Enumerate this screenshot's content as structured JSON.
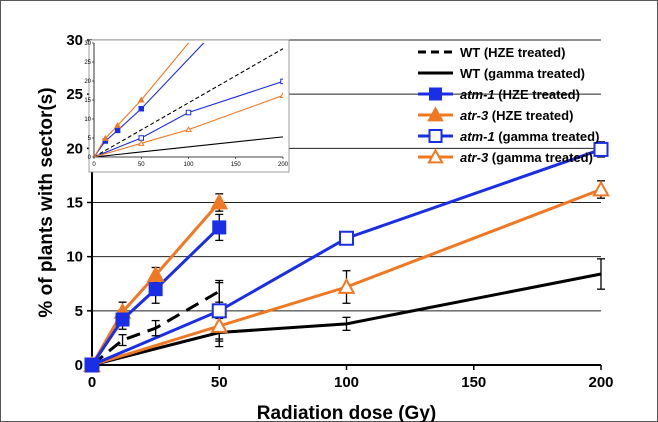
{
  "chart_data": {
    "type": "line",
    "xlabel": "Radiation dose (Gy)",
    "ylabel": "% of plants with sector(s)",
    "xlim": [
      0,
      200
    ],
    "ylim": [
      0,
      30
    ],
    "x_ticks": [
      "0",
      "50",
      "100",
      "150",
      "200"
    ],
    "y_ticks": [
      "0",
      "5",
      "10",
      "15",
      "20",
      "25",
      "30"
    ],
    "grid": "horizontal",
    "legend_position": "top-right",
    "series": [
      {
        "name": "WT (HZE treated)",
        "name_italic": "",
        "name_rest": "WT (HZE treated)",
        "color": "#000000",
        "dash": "dashed",
        "marker": "none",
        "x": [
          0,
          12,
          25,
          50
        ],
        "y": [
          0,
          2.3,
          3.4,
          6.8
        ],
        "err": [
          0,
          0.5,
          0.7,
          1.0
        ]
      },
      {
        "name": "WT (gamma treated)",
        "name_italic": "",
        "name_rest": "WT (gamma treated)",
        "color": "#000000",
        "dash": "solid",
        "marker": "none",
        "x": [
          0,
          50,
          100,
          200
        ],
        "y": [
          0,
          3.0,
          3.8,
          8.4
        ],
        "err": [
          0,
          1.3,
          0.6,
          1.4
        ]
      },
      {
        "name": "atm-1 (HZE treated)",
        "name_italic": "atm-1",
        "name_rest": " (HZE treated)",
        "color": "#1a2ee6",
        "dash": "solid",
        "marker": "filled-square",
        "x": [
          0,
          12,
          25,
          50
        ],
        "y": [
          0,
          4.2,
          7.0,
          12.7
        ],
        "err": [
          0,
          0.9,
          1.3,
          1.2
        ]
      },
      {
        "name": "atr-3 (HZE treated)",
        "name_italic": "atr-3",
        "name_rest": " (HZE treated)",
        "color": "#f07822",
        "dash": "solid",
        "marker": "filled-triangle",
        "x": [
          0,
          12,
          25,
          50
        ],
        "y": [
          0,
          4.9,
          8.3,
          15.0
        ],
        "err": [
          0,
          0.9,
          0.7,
          0.8
        ]
      },
      {
        "name": "atm-1 (gamma treated)",
        "name_italic": "atm-1",
        "name_rest": " (gamma treated)",
        "color": "#1a2ee6",
        "dash": "solid",
        "marker": "open-square",
        "x": [
          0,
          50,
          100,
          200
        ],
        "y": [
          0,
          5.0,
          11.7,
          19.9
        ],
        "err": [
          0,
          2.6,
          0.5,
          0.7
        ]
      },
      {
        "name": "atr-3 (gamma treated)",
        "name_italic": "atr-3",
        "name_rest": " (gamma treated)",
        "color": "#f07822",
        "dash": "solid",
        "marker": "open-triangle",
        "x": [
          0,
          50,
          100,
          200
        ],
        "y": [
          0,
          3.6,
          7.2,
          16.2
        ],
        "err": [
          0,
          1.4,
          1.5,
          0.8
        ]
      }
    ],
    "inset": {
      "type": "line",
      "xlim": [
        0,
        200
      ],
      "ylim": [
        0,
        30
      ],
      "x_ticks": [
        "0",
        "50",
        "100",
        "150",
        "200"
      ],
      "y_ticks": [
        "0",
        "5",
        "10",
        "15",
        "20",
        "25",
        "30"
      ],
      "series": [
        {
          "color": "#000000",
          "dash": "dashed",
          "marker": "none",
          "x": [
            0,
            200
          ],
          "y": [
            0,
            28.5
          ]
        },
        {
          "color": "#000000",
          "dash": "solid",
          "marker": "none",
          "x": [
            0,
            200
          ],
          "y": [
            0,
            5.3
          ]
        },
        {
          "color": "#1a2ee6",
          "dash": "solid",
          "marker": "filled-square",
          "x": [
            0,
            12,
            25,
            50,
            200
          ],
          "y": [
            0,
            4.2,
            7.0,
            12.7,
            52
          ]
        },
        {
          "color": "#f07822",
          "dash": "solid",
          "marker": "filled-triangle",
          "x": [
            0,
            12,
            25,
            50,
            200
          ],
          "y": [
            0,
            4.9,
            8.3,
            15.0,
            60
          ]
        },
        {
          "color": "#1a2ee6",
          "dash": "solid",
          "marker": "open-square",
          "x": [
            0,
            50,
            100,
            200
          ],
          "y": [
            0,
            5.0,
            11.7,
            19.9
          ]
        },
        {
          "color": "#f07822",
          "dash": "solid",
          "marker": "open-triangle",
          "x": [
            0,
            50,
            100,
            200
          ],
          "y": [
            0,
            3.6,
            7.2,
            16.2
          ]
        }
      ]
    }
  }
}
